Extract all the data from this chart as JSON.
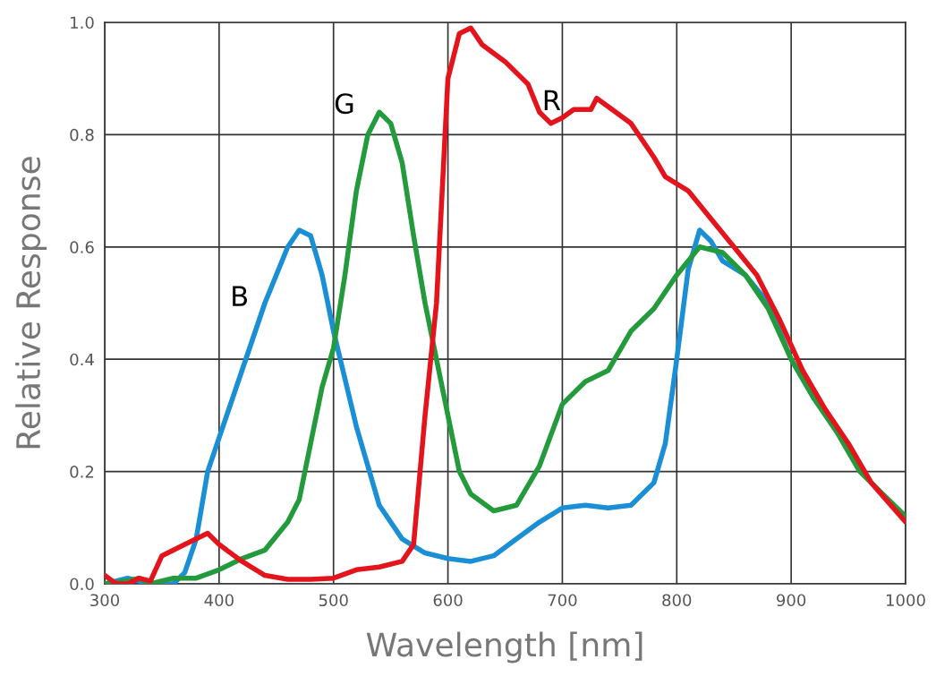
{
  "chart_data": {
    "type": "line",
    "xlabel": "Wavelength [nm]",
    "ylabel": "Relative Response",
    "xlim": [
      300,
      1000
    ],
    "xticks": [
      300,
      400,
      500,
      600,
      700,
      800,
      900,
      1000
    ],
    "ylim": [
      0,
      1.0
    ],
    "yticks": [
      {
        "value": 0,
        "label": "0.0"
      },
      {
        "value": 0.2,
        "label": "0.2"
      },
      {
        "value": 0.4,
        "label": "0.4"
      },
      {
        "value": 0.6,
        "label": "0.6"
      },
      {
        "value": 0.8,
        "label": "0.8"
      },
      {
        "value": 1.0,
        "label": "1.0"
      }
    ],
    "grid": true,
    "legend": false,
    "marker": "none",
    "line_style": "solid",
    "series": [
      {
        "name": "B",
        "color": "#1a8fd6",
        "x": [
          300,
          320,
          340,
          360,
          370,
          380,
          390,
          400,
          420,
          440,
          460,
          470,
          480,
          490,
          500,
          520,
          540,
          560,
          580,
          600,
          620,
          640,
          660,
          680,
          700,
          720,
          740,
          760,
          780,
          790,
          800,
          810,
          820,
          830,
          840,
          860,
          880,
          900,
          920
        ],
        "values": [
          0.0,
          0.01,
          0.0,
          0.0,
          0.02,
          0.08,
          0.2,
          0.26,
          0.38,
          0.5,
          0.6,
          0.63,
          0.62,
          0.55,
          0.45,
          0.28,
          0.14,
          0.08,
          0.055,
          0.045,
          0.04,
          0.05,
          0.08,
          0.11,
          0.135,
          0.14,
          0.135,
          0.14,
          0.18,
          0.25,
          0.4,
          0.56,
          0.63,
          0.61,
          0.575,
          0.55,
          0.5,
          0.4,
          0.33
        ]
      },
      {
        "name": "G",
        "color": "#239a3c",
        "x": [
          300,
          320,
          330,
          340,
          360,
          380,
          400,
          420,
          440,
          460,
          470,
          480,
          490,
          500,
          510,
          520,
          530,
          540,
          550,
          560,
          570,
          580,
          590,
          600,
          610,
          620,
          640,
          660,
          680,
          700,
          720,
          740,
          760,
          780,
          800,
          820,
          840,
          860,
          880,
          900,
          920,
          940,
          960,
          980,
          1000
        ],
        "values": [
          0.0,
          0.005,
          0.01,
          0.0,
          0.01,
          0.01,
          0.025,
          0.045,
          0.06,
          0.11,
          0.15,
          0.25,
          0.35,
          0.42,
          0.55,
          0.7,
          0.8,
          0.84,
          0.82,
          0.75,
          0.62,
          0.5,
          0.4,
          0.3,
          0.2,
          0.16,
          0.13,
          0.14,
          0.21,
          0.32,
          0.36,
          0.38,
          0.45,
          0.49,
          0.55,
          0.6,
          0.59,
          0.55,
          0.49,
          0.4,
          0.33,
          0.27,
          0.2,
          0.16,
          0.12
        ]
      },
      {
        "name": "R",
        "color": "#e3141b",
        "x": [
          300,
          310,
          320,
          330,
          340,
          350,
          370,
          390,
          400,
          420,
          440,
          460,
          480,
          500,
          520,
          540,
          560,
          570,
          580,
          590,
          595,
          600,
          610,
          620,
          630,
          650,
          670,
          680,
          690,
          700,
          710,
          725,
          730,
          740,
          760,
          780,
          790,
          810,
          830,
          850,
          870,
          890,
          910,
          930,
          950,
          970,
          1000
        ],
        "values": [
          0.015,
          0.0,
          0.0,
          0.01,
          0.005,
          0.05,
          0.07,
          0.09,
          0.07,
          0.04,
          0.015,
          0.008,
          0.008,
          0.01,
          0.025,
          0.03,
          0.04,
          0.07,
          0.3,
          0.5,
          0.7,
          0.9,
          0.98,
          0.99,
          0.96,
          0.93,
          0.89,
          0.84,
          0.82,
          0.83,
          0.845,
          0.845,
          0.865,
          0.85,
          0.82,
          0.76,
          0.725,
          0.7,
          0.65,
          0.6,
          0.55,
          0.47,
          0.38,
          0.31,
          0.25,
          0.18,
          0.11
        ]
      }
    ]
  }
}
